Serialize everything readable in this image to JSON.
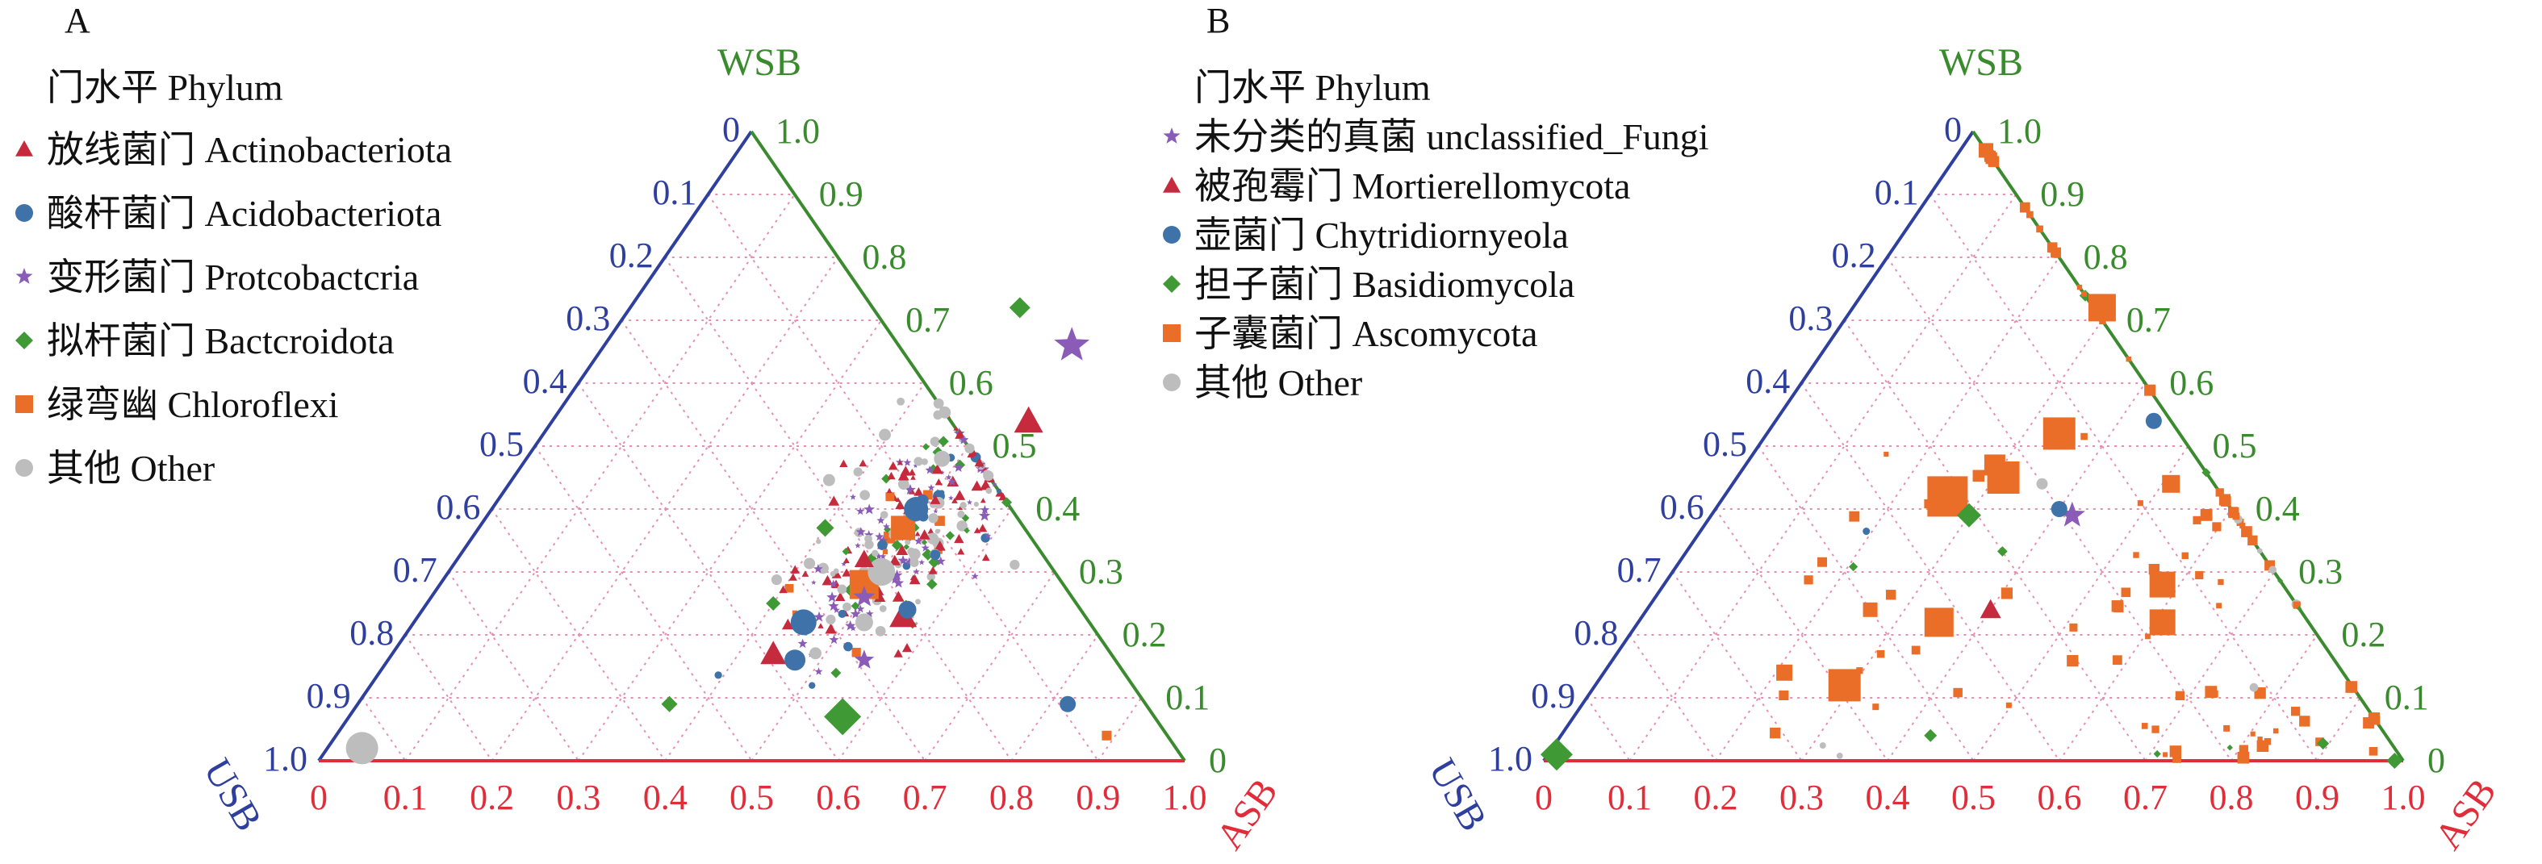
{
  "colors": {
    "usb_axis": "#2e3f9e",
    "wsb_axis": "#3a8a2e",
    "asb_axis": "#e02d3a",
    "grid": "#e58fb0",
    "triangle_red": "#c52b3d",
    "circle_blue": "#3e72a8",
    "star_purple": "#8a5cb8",
    "diamond_green": "#3f9a35",
    "square_orange": "#ea6d28",
    "dot_gray": "#bdbdbd"
  },
  "chart_data": [
    {
      "panel": "A",
      "type": "ternary-scatter",
      "axes": {
        "top": {
          "name": "WSB",
          "ticks": [
            "0",
            "0.1",
            "0.2",
            "0.3",
            "0.4",
            "0.5",
            "0.6",
            "0.7",
            "0.8",
            "0.9",
            "1.0"
          ]
        },
        "right": {
          "ticks": [
            "1.0",
            "0.9",
            "0.8",
            "0.7",
            "0.6",
            "0.5",
            "0.4",
            "0.3",
            "0.2",
            "0.1",
            "0"
          ]
        },
        "bottom": {
          "name": "ASB",
          "ticks": [
            "0",
            "0.1",
            "0.2",
            "0.3",
            "0.4",
            "0.5",
            "0.6",
            "0.7",
            "0.8",
            "0.9",
            "1.0"
          ]
        },
        "left_name": "USB"
      },
      "legend": {
        "title": "门水平 Phylum",
        "items": [
          {
            "label": "放线菌门 Actinobacteriota",
            "marker": "triangle",
            "color": "#c52b3d"
          },
          {
            "label": "酸杆菌门 Acidobacteriota",
            "marker": "circle",
            "color": "#3e72a8"
          },
          {
            "label": "变形菌门 Protcobactcria",
            "marker": "star",
            "color": "#8a5cb8"
          },
          {
            "label": "拟杆菌门 Bactcroidota",
            "marker": "diamond",
            "color": "#3f9a35"
          },
          {
            "label": "绿弯幽 Chloroflexi",
            "marker": "square",
            "color": "#ea6d28"
          },
          {
            "label": "其他 Other",
            "marker": "circle",
            "color": "#bdbdbd"
          }
        ]
      },
      "points": [
        {
          "m": "star",
          "c": "#8a5cb8",
          "asb": 0.54,
          "wsb": 0.66,
          "s": 46
        },
        {
          "m": "diamond",
          "c": "#3f9a35",
          "asb": 0.57,
          "wsb": 0.07,
          "s": 46
        },
        {
          "m": "circle",
          "c": "#bdbdbd",
          "asb": 0.04,
          "wsb": 0.02,
          "s": 40
        },
        {
          "m": "triangle",
          "c": "#c52b3d",
          "asb": 0.55,
          "wsb": 0.54,
          "s": 36
        },
        {
          "m": "square",
          "c": "#ea6d28",
          "asb": 0.49,
          "wsb": 0.37,
          "s": 30
        },
        {
          "m": "square",
          "c": "#ea6d28",
          "asb": 0.49,
          "wsb": 0.28,
          "s": 36
        },
        {
          "m": "circle",
          "c": "#bdbdbd",
          "asb": 0.5,
          "wsb": 0.3,
          "s": 34
        },
        {
          "m": "circle",
          "c": "#3e72a8",
          "asb": 0.49,
          "wsb": 0.4,
          "s": 30
        },
        {
          "m": "circle",
          "c": "#3e72a8",
          "asb": 0.45,
          "wsb": 0.22,
          "s": 32
        },
        {
          "m": "triangle",
          "c": "#c52b3d",
          "asb": 0.56,
          "wsb": 0.23,
          "s": 34
        },
        {
          "m": "triangle",
          "c": "#c52b3d",
          "asb": 0.44,
          "wsb": 0.17,
          "s": 32
        },
        {
          "m": "circle",
          "c": "#3e72a8",
          "asb": 0.47,
          "wsb": 0.16,
          "s": 26
        },
        {
          "m": "diamond",
          "c": "#3f9a35",
          "asb": 0.45,
          "wsb": 0.72,
          "s": 26
        },
        {
          "m": "star",
          "c": "#8a5cb8",
          "asb": 0.5,
          "wsb": 0.26,
          "s": 28
        },
        {
          "m": "star",
          "c": "#8a5cb8",
          "asb": 0.55,
          "wsb": 0.16,
          "s": 26
        },
        {
          "m": "diamond",
          "c": "#3f9a35",
          "asb": 0.4,
          "wsb": 0.37,
          "s": 22
        },
        {
          "m": "circle",
          "c": "#3e72a8",
          "asb": 0.82,
          "wsb": 0.09,
          "s": 20
        },
        {
          "m": "circle",
          "c": "#bdbdbd",
          "asb": 0.48,
          "wsb": 0.48,
          "s": 20
        },
        {
          "m": "triangle",
          "c": "#c52b3d",
          "asb": 0.47,
          "wsb": 0.32,
          "s": 24
        },
        {
          "m": "circle",
          "c": "#bdbdbd",
          "asb": 0.52,
          "wsb": 0.22,
          "s": 22
        },
        {
          "m": "diamond",
          "c": "#3f9a35",
          "asb": 0.36,
          "wsb": 0.09,
          "s": 20
        },
        {
          "m": "square",
          "c": "#ea6d28",
          "asb": 0.89,
          "wsb": 0.04,
          "s": 12
        },
        {
          "m": "diamond",
          "c": "#3f9a35",
          "asb": 0.4,
          "wsb": 0.25,
          "s": 18
        },
        {
          "m": "circle",
          "c": "#3e72a8",
          "asb": 0.56,
          "wsb": 0.24,
          "s": 22
        }
      ],
      "seed": 11,
      "bg_points": 300
    },
    {
      "panel": "B",
      "type": "ternary-scatter",
      "axes": {
        "top": {
          "name": "WSB",
          "ticks": [
            "0",
            "0.1",
            "0.2",
            "0.3",
            "0.4",
            "0.5",
            "0.6",
            "0.7",
            "0.8",
            "0.9",
            "1.0"
          ]
        },
        "right": {
          "ticks": [
            "1.0",
            "0.9",
            "0.8",
            "0.7",
            "0.6",
            "0.5",
            "0.4",
            "0.3",
            "0.2",
            "0.1",
            "0"
          ]
        },
        "bottom": {
          "name": "ASB",
          "ticks": [
            "0",
            "0.1",
            "0.2",
            "0.3",
            "0.4",
            "0.5",
            "0.6",
            "0.7",
            "0.8",
            "0.9",
            "1.0"
          ]
        },
        "left_name": "USB"
      },
      "legend": {
        "title": "门水平 Phylum",
        "items": [
          {
            "label": "未分类的真菌 unclassified_Fungi",
            "marker": "star",
            "color": "#8a5cb8"
          },
          {
            "label": "被孢霉门 Mortierellomycota",
            "marker": "triangle",
            "color": "#c52b3d"
          },
          {
            "label": "壶菌门 Chytridiornyeola",
            "marker": "circle",
            "color": "#3e72a8"
          },
          {
            "label": "担子菌门 Basidiomycola",
            "marker": "diamond",
            "color": "#3f9a35"
          },
          {
            "label": "子囊菌门 Ascomycota",
            "marker": "square",
            "color": "#ea6d28"
          },
          {
            "label": "其他 Other",
            "marker": "circle",
            "color": "#bdbdbd"
          }
        ]
      },
      "points": [
        {
          "m": "square",
          "c": "#ea6d28",
          "asb": 0.26,
          "wsb": 0.42,
          "s": 50
        },
        {
          "m": "square",
          "c": "#ea6d28",
          "asb": 0.31,
          "wsb": 0.45,
          "s": 40
        },
        {
          "m": "square",
          "c": "#ea6d28",
          "asb": 0.34,
          "wsb": 0.52,
          "s": 40
        },
        {
          "m": "square",
          "c": "#ea6d28",
          "asb": 0.29,
          "wsb": 0.72,
          "s": 34
        },
        {
          "m": "square",
          "c": "#ea6d28",
          "asb": 0.35,
          "wsb": 0.22,
          "s": 36
        },
        {
          "m": "square",
          "c": "#ea6d28",
          "asb": 0.29,
          "wsb": 0.12,
          "s": 40
        },
        {
          "m": "square",
          "c": "#ea6d28",
          "asb": 0.58,
          "wsb": 0.28,
          "s": 32
        },
        {
          "m": "square",
          "c": "#ea6d28",
          "asb": 0.61,
          "wsb": 0.22,
          "s": 32
        },
        {
          "m": "square",
          "c": "#ea6d28",
          "asb": 0.29,
          "wsb": 0.47,
          "s": 26
        },
        {
          "m": "square",
          "c": "#ea6d28",
          "asb": 0.51,
          "wsb": 0.44,
          "s": 22
        },
        {
          "m": "square",
          "c": "#ea6d28",
          "asb": 0.21,
          "wsb": 0.14,
          "s": 20
        },
        {
          "m": "square",
          "c": "#ea6d28",
          "asb": 0.26,
          "wsb": 0.24,
          "s": 18
        },
        {
          "m": "star",
          "c": "#8a5cb8",
          "asb": 0.42,
          "wsb": 0.39,
          "s": 34
        },
        {
          "m": "diamond",
          "c": "#3f9a35",
          "asb": 0.3,
          "wsb": 0.39,
          "s": 30
        },
        {
          "m": "circle",
          "c": "#3e72a8",
          "asb": 0.4,
          "wsb": 0.4,
          "s": 20
        },
        {
          "m": "circle",
          "c": "#3e72a8",
          "asb": 0.44,
          "wsb": 0.54,
          "s": 20
        },
        {
          "m": "triangle",
          "c": "#c52b3d",
          "asb": 0.4,
          "wsb": 0.24,
          "s": 26
        },
        {
          "m": "diamond",
          "c": "#3f9a35",
          "asb": 0.01,
          "wsb": 0.01,
          "s": 40
        },
        {
          "m": "diamond",
          "c": "#3f9a35",
          "asb": 0.99,
          "wsb": 0.0,
          "s": 20
        },
        {
          "m": "diamond",
          "c": "#3f9a35",
          "asb": 0.43,
          "wsb": 0.04,
          "s": 16
        },
        {
          "m": "square",
          "c": "#ea6d28",
          "asb": 0.03,
          "wsb": 0.97,
          "s": 18
        },
        {
          "m": "circle",
          "c": "#bdbdbd",
          "asb": 0.36,
          "wsb": 0.44,
          "s": 14
        }
      ],
      "seed": 29,
      "bg_points": 110
    }
  ]
}
